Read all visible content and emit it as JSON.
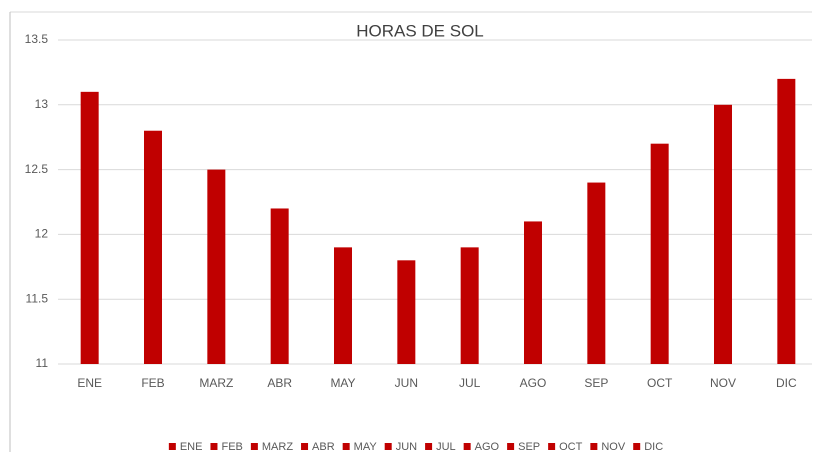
{
  "chart_data": {
    "type": "bar",
    "title": "HORAS DE SOL",
    "categories": [
      "ENE",
      "FEB",
      "MARZ",
      "ABR",
      "MAY",
      "JUN",
      "JUL",
      "AGO",
      "SEP",
      "OCT",
      "NOV",
      "DIC"
    ],
    "values": [
      13.1,
      12.8,
      12.5,
      12.2,
      11.9,
      11.8,
      11.9,
      12.1,
      12.4,
      12.7,
      13.0,
      13.2
    ],
    "color": "#c00000",
    "ylim": [
      11,
      13.5
    ],
    "yticks": [
      11,
      11.5,
      12,
      12.5,
      13,
      13.5
    ],
    "grid": true,
    "legend": "bottom"
  }
}
